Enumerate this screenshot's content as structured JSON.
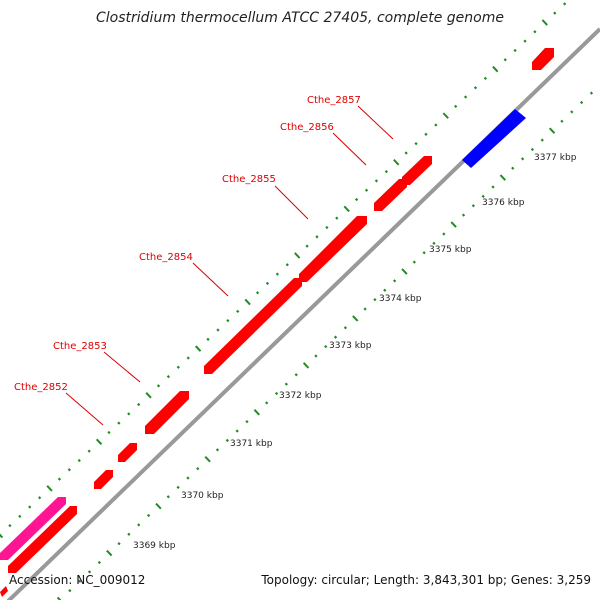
{
  "title": "Clostridium thermocellum ATCC 27405, complete genome",
  "footer": {
    "accession": "Accession: NC_009012",
    "summary": "Topology: circular; Length: 3,843,301 bp; Genes: 3,259"
  },
  "colors": {
    "background": "#ffffff",
    "backbone": "#999999",
    "forward_gene": "#ff0000",
    "reverse_gene": "#0000ff",
    "other_feature": "#ff1493",
    "gene_label": "#dd0000",
    "tick": "#228b22"
  },
  "scale": {
    "unit": "kbp",
    "labels": [
      "3369 kbp",
      "3370 kbp",
      "3371 kbp",
      "3372 kbp",
      "3373 kbp",
      "3374 kbp",
      "3375 kbp",
      "3376 kbp",
      "3377 kbp"
    ]
  },
  "genes": [
    {
      "name": "Cthe_2852",
      "strand": "forward",
      "labeled": true
    },
    {
      "name": "Cthe_2853",
      "strand": "forward",
      "labeled": true
    },
    {
      "name": "Cthe_2854",
      "strand": "forward",
      "labeled": true
    },
    {
      "name": "Cthe_2855",
      "strand": "forward",
      "labeled": true
    },
    {
      "name": "Cthe_2856",
      "strand": "forward",
      "labeled": true
    },
    {
      "name": "Cthe_2857",
      "strand": "forward",
      "labeled": true
    }
  ]
}
